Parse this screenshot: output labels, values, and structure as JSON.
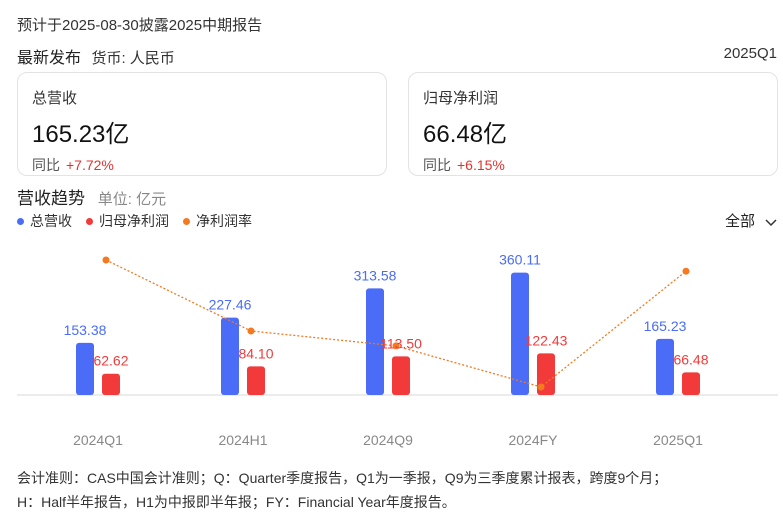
{
  "notice": "预计于2025-08-30披露2025中期报告",
  "subhead": {
    "title": "最新发布",
    "currency": "货币: 人民币"
  },
  "period": "2025Q1",
  "cards": [
    {
      "label": "总营收",
      "value": "165.23亿",
      "yoy_label": "同比",
      "yoy_value": "+7.72%"
    },
    {
      "label": "归母净利润",
      "value": "66.48亿",
      "yoy_label": "同比",
      "yoy_value": "+6.15%"
    }
  ],
  "trend": {
    "title": "营收趋势",
    "unit": "单位: 亿元"
  },
  "legend": [
    {
      "label": "总营收",
      "color": "#4a6cf7"
    },
    {
      "label": "归母净利润",
      "color": "#f23a3a"
    },
    {
      "label": "净利润率",
      "color": "#f4791f"
    }
  ],
  "filter": {
    "label": "全部",
    "icon": "chevron-down-icon"
  },
  "chart_data": {
    "type": "bar",
    "categories": [
      "2024Q1",
      "2024H1",
      "2024Q9",
      "2024FY",
      "2025Q1"
    ],
    "series": [
      {
        "name": "总营收",
        "values": [
          153.38,
          227.46,
          313.58,
          360.11,
          165.23
        ],
        "labels": [
          "153.38",
          "227.46",
          "313.58",
          "360.11",
          "165.23"
        ],
        "color": "#4a6cf7"
      },
      {
        "name": "归母净利润",
        "values": [
          62.62,
          84.1,
          113.5,
          122.43,
          66.48
        ],
        "labels": [
          "62.62",
          "84.10",
          "113.50",
          "122.43",
          "66.48"
        ],
        "color": "#f23a3a"
      }
    ],
    "line_series": {
      "name": "净利润率",
      "values": [
        40.8,
        37.0,
        36.2,
        34.0,
        40.2
      ],
      "color": "#f4791f",
      "style": "dotted"
    }
  },
  "footer": {
    "line1": "会计准则：CAS中国会计准则；Q：Quarter季度报告，Q1为一季报，Q9为三季度累计报表，跨度9个月；",
    "line2": "H：Half半年报告，H1为中报即半年报；FY：Financial Year年度报告。"
  }
}
